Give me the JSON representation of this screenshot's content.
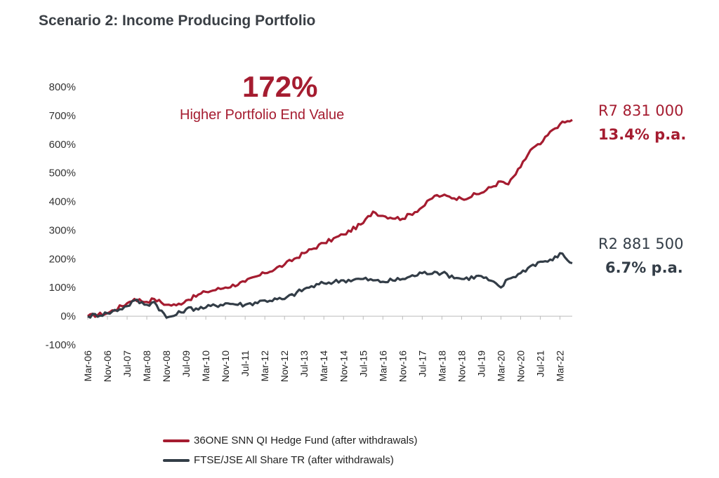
{
  "title": "Scenario 2: Income Producing Portfolio",
  "callout": {
    "big": "172%",
    "sub": "Higher Portfolio End Value"
  },
  "end_labels": [
    {
      "value": "R7 831 000",
      "rate": "13.4% p.a."
    },
    {
      "value": "R2 881 500",
      "rate": "6.7% p.a."
    }
  ],
  "colors": {
    "fund": "#a51c30",
    "index": "#333d47",
    "title": "#3a3f45"
  },
  "legend": [
    {
      "label": "36ONE SNN QI Hedge Fund (after withdrawals)"
    },
    {
      "label": "FTSE/JSE All Share TR (after withdrawals)"
    }
  ],
  "chart_data": {
    "type": "line",
    "title": "Scenario 2: Income Producing Portfolio",
    "ylim": [
      -100,
      800
    ],
    "yticks": [
      "-100%",
      "0%",
      "100%",
      "200%",
      "300%",
      "400%",
      "500%",
      "600%",
      "700%",
      "800%"
    ],
    "xticks": [
      "Mar-06",
      "Nov-06",
      "Jul-07",
      "Mar-08",
      "Nov-08",
      "Jul-09",
      "Mar-10",
      "Nov-10",
      "Jul-11",
      "Mar-12",
      "Nov-12",
      "Jul-13",
      "Mar-14",
      "Nov-14",
      "Jul-15",
      "Mar-16",
      "Nov-16",
      "Jul-17",
      "Mar-18",
      "Nov-18",
      "Jul-19",
      "Mar-20",
      "Nov-20",
      "Jul-21",
      "Mar-22"
    ],
    "x": [
      "Mar-06",
      "Nov-06",
      "Jul-07",
      "Oct-07",
      "Mar-08",
      "Jun-08",
      "Nov-08",
      "Mar-09",
      "Jul-09",
      "Mar-10",
      "Nov-10",
      "Jul-11",
      "Mar-12",
      "Nov-12",
      "Jul-13",
      "Mar-14",
      "Nov-14",
      "Jul-15",
      "Nov-15",
      "Mar-16",
      "Nov-16",
      "Jul-17",
      "Dec-17",
      "Mar-18",
      "Nov-18",
      "Jul-19",
      "Mar-20",
      "Jun-20",
      "Nov-20",
      "Mar-21",
      "Jul-21",
      "Dec-21",
      "Mar-22",
      "Aug-22"
    ],
    "series": [
      {
        "name": "36ONE SNN QI Hedge Fund (after withdrawals)",
        "values": [
          0,
          10,
          45,
          60,
          50,
          60,
          40,
          38,
          55,
          85,
          100,
          120,
          150,
          180,
          220,
          255,
          285,
          325,
          365,
          350,
          340,
          380,
          420,
          420,
          410,
          430,
          470,
          460,
          520,
          580,
          600,
          650,
          670,
          685
        ]
      },
      {
        "name": "FTSE/JSE All Share TR (after withdrawals)",
        "values": [
          0,
          10,
          35,
          55,
          40,
          50,
          -5,
          5,
          25,
          30,
          45,
          40,
          55,
          60,
          95,
          115,
          125,
          130,
          125,
          120,
          130,
          150,
          155,
          150,
          130,
          140,
          100,
          130,
          150,
          175,
          190,
          195,
          220,
          185
        ]
      }
    ]
  }
}
